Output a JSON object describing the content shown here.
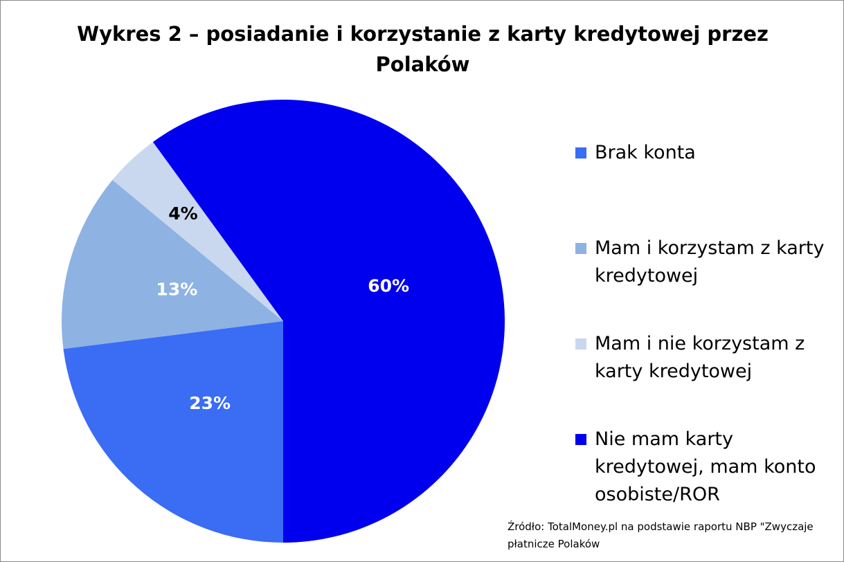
{
  "chart_data": {
    "type": "pie",
    "title": "Wykres 2 – posiadanie i korzystanie z karty kredytowej przez Polaków",
    "categories": [
      "Brak konta",
      "Mam i korzystam z karty kredytowej",
      "Mam i nie korzystam z karty kredytowej",
      "Nie mam karty kredytowej, mam konto osobiste/ROR"
    ],
    "values": [
      23,
      13,
      4,
      60
    ],
    "value_labels": [
      "23%",
      "13%",
      "4%",
      "60%"
    ],
    "colors": [
      "#3a6cf4",
      "#8eb2e2",
      "#c9d8ef",
      "#0000ee"
    ],
    "label_colors": [
      "#ffffff",
      "#ffffff",
      "#000000",
      "#ffffff"
    ],
    "source": "Źródło: TotalMoney.pl na podstawie raportu NBP \"Zwyczaje płatnicze Polaków"
  }
}
